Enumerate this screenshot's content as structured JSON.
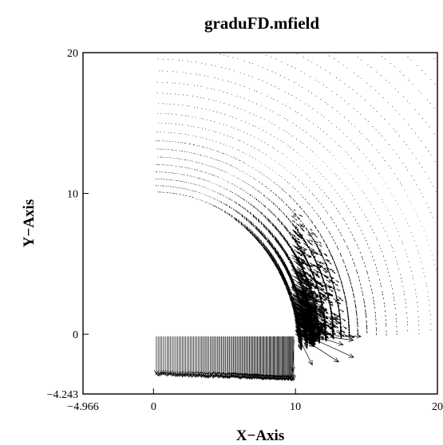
{
  "chart_data": {
    "type": "vector-field",
    "title": "graduFD.mfield",
    "xlabel": "X−Axis",
    "ylabel": "Y−Axis",
    "xlim": [
      -4.966,
      20
    ],
    "ylim": [
      -4.243,
      20
    ],
    "x_ticks": [
      {
        "value": -4.966,
        "label": "−4.966"
      },
      {
        "value": 0,
        "label": "0"
      },
      {
        "value": 10,
        "label": "10"
      },
      {
        "value": 20,
        "label": "20"
      }
    ],
    "y_ticks": [
      {
        "value": -4.243,
        "label": "−4.243"
      },
      {
        "value": 0,
        "label": "0"
      },
      {
        "value": 10,
        "label": "10"
      },
      {
        "value": 20,
        "label": "20"
      }
    ],
    "grid": false,
    "legend": "none",
    "color": "#000000"
  }
}
